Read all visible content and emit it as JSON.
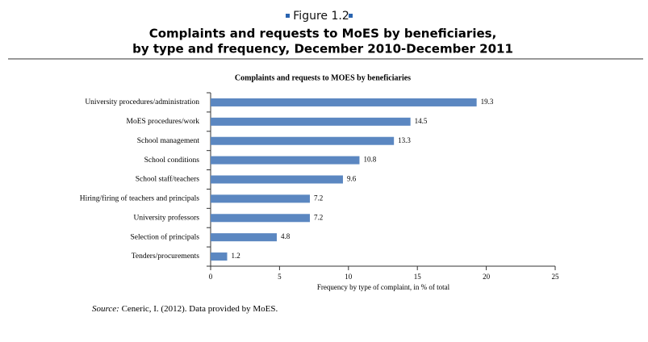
{
  "figure_label": "Figure 1.2",
  "title_lines": [
    "Complaints and requests to MoES by beneficiaries,",
    "by type and frequency, December 2010-December 2011"
  ],
  "source": {
    "label": "Source:",
    "text": "Ceneric, I. (2012). Data provided by MoES."
  },
  "chart_data": {
    "type": "hbar",
    "title": "Complaints and requests to MOES by beneficiaries",
    "x_label": "Frequency by type of complaint, in % of total",
    "categories": [
      "University procedures/administration",
      "MoES procedures/work",
      "School management",
      "School conditions",
      "School staff/teachers",
      "Hiring/firing of teachers and principals",
      "University professors",
      "Selection of principals",
      "Tenders/procurements"
    ],
    "values": [
      19.3,
      14.5,
      13.3,
      10.8,
      9.6,
      7.2,
      7.2,
      4.8,
      1.2
    ],
    "color": "#5b87c1",
    "xlim": [
      0,
      25
    ],
    "xticks": [
      0,
      5,
      10,
      15,
      20,
      25
    ]
  }
}
